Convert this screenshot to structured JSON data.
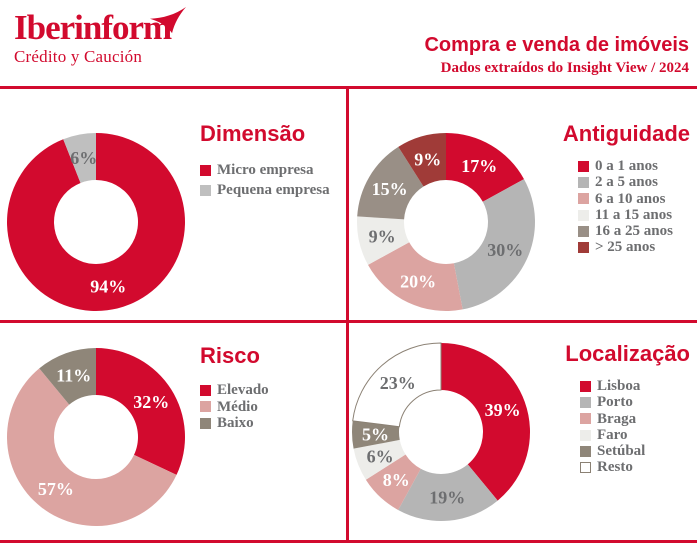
{
  "logo": {
    "name": "Iberinform",
    "tagline": "Crédito y Caución"
  },
  "header": {
    "title": "Compra e venda de imóveis",
    "subtitle": "Dados extraídos do Insight View / 2024"
  },
  "colors": {
    "brand_red": "#D20A2E",
    "legend_text": "#6D6E70",
    "separator": "#D20A2E"
  },
  "chart_data": [
    {
      "type": "donut",
      "title": "Dimensão",
      "legend_position": "right",
      "slices": [
        {
          "label": "Micro empresa",
          "value": 94,
          "color": "#D20A2E",
          "text_color": "#FFFFFF"
        },
        {
          "label": "Pequena empresa",
          "value": 6,
          "color": "#BFBFBF",
          "text_color": "#6D6E70"
        }
      ]
    },
    {
      "type": "donut",
      "title": "Antiguidade",
      "legend_position": "right",
      "slices": [
        {
          "label": "0 a 1 anos",
          "value": 17,
          "color": "#D20A2E",
          "text_color": "#FFFFFF"
        },
        {
          "label": "2 a 5 anos",
          "value": 30,
          "color": "#B5B5B5",
          "text_color": "#6D6E70"
        },
        {
          "label": "6 a 10 anos",
          "value": 20,
          "color": "#DCA4A1",
          "text_color": "#FFFFFF"
        },
        {
          "label": "11 a 15 anos",
          "value": 9,
          "color": "#EDEDEA",
          "text_color": "#6D6E70"
        },
        {
          "label": "16 a 25 anos",
          "value": 15,
          "color": "#998F86",
          "text_color": "#FFFFFF"
        },
        {
          "label": "> 25 anos",
          "value": 9,
          "color": "#A03B38",
          "text_color": "#FFFFFF"
        }
      ]
    },
    {
      "type": "donut",
      "title": "Risco",
      "legend_position": "right",
      "slices": [
        {
          "label": "Elevado",
          "value": 32,
          "color": "#D20A2E",
          "text_color": "#FFFFFF"
        },
        {
          "label": "Médio",
          "value": 57,
          "color": "#DCA4A1",
          "text_color": "#FFFFFF"
        },
        {
          "label": "Baixo",
          "value": 11,
          "color": "#8F8679",
          "text_color": "#FFFFFF"
        }
      ]
    },
    {
      "type": "donut",
      "title": "Localização",
      "legend_position": "right",
      "slices": [
        {
          "label": "Lisboa",
          "value": 39,
          "color": "#D20A2E",
          "text_color": "#FFFFFF"
        },
        {
          "label": "Porto",
          "value": 19,
          "color": "#B5B5B5",
          "text_color": "#6D6E70"
        },
        {
          "label": "Braga",
          "value": 8,
          "color": "#DCA4A1",
          "text_color": "#FFFFFF"
        },
        {
          "label": "Faro",
          "value": 6,
          "color": "#EDEDEA",
          "text_color": "#6D6E70"
        },
        {
          "label": "Setúbal",
          "value": 5,
          "color": "#8F8679",
          "text_color": "#FFFFFF"
        },
        {
          "label": "Resto",
          "value": 23,
          "color": "#FFFFFF",
          "text_color": "#6D6E70",
          "stroke": "#8B8174"
        }
      ]
    }
  ]
}
